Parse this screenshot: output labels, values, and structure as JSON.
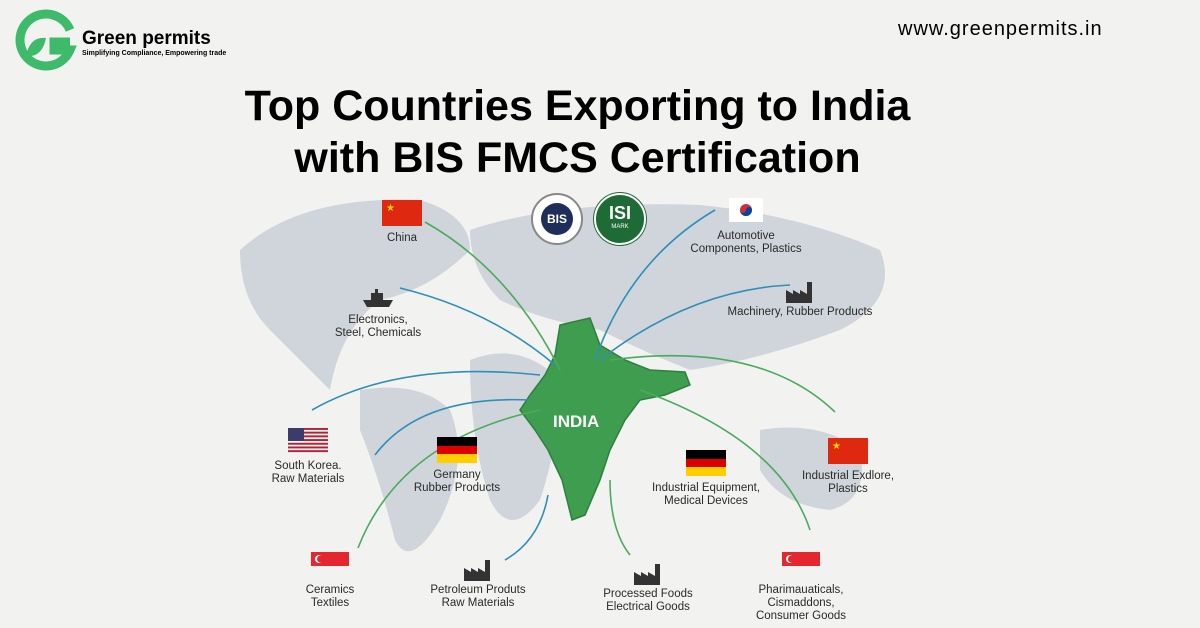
{
  "brand": {
    "name": "Green permits",
    "tagline": "Simplifying Compliance, Empowering trade",
    "website": "www.greenpermits.in",
    "color": "#3dbb6a"
  },
  "title": {
    "line1": "Top Countries Exporting to India",
    "line2": "with BIS FMCS Certification"
  },
  "badges": {
    "bis": "BIS",
    "isi": "ISI",
    "isi_sub": "MARK"
  },
  "map": {
    "center_label": "INDIA",
    "india_color": "#3e9d4f",
    "land_color": "#c9d0d6"
  },
  "destinations": [
    {
      "icon": "china-flag",
      "lines": [
        "China"
      ]
    },
    {
      "icon": "ship-icon",
      "lines": [
        "Electronics,",
        "Steel, Chemicals"
      ]
    },
    {
      "icon": "usa-flag",
      "lines": [
        "South Korea.",
        "Raw Materials"
      ]
    },
    {
      "icon": "germany-flag",
      "lines": [
        "Germany",
        "Rubber Products"
      ]
    },
    {
      "icon": "singapore-flag",
      "lines": [
        "Ceramics",
        "Textiles"
      ]
    },
    {
      "icon": "factory-icon",
      "lines": [
        "Petroleum Produts",
        "Raw Materials"
      ]
    },
    {
      "icon": "factory-icon",
      "lines": [
        "Processed Foods",
        "Electrical Goods"
      ]
    },
    {
      "icon": "south-korea-flag",
      "lines": [
        "Automotive",
        "Components, Plastics"
      ]
    },
    {
      "icon": "factory-icon",
      "lines": [
        "Machinery, Rubber Products"
      ]
    },
    {
      "icon": "germany-flag",
      "lines": [
        "Industrial Equipment,",
        "Medical Devices"
      ]
    },
    {
      "icon": "china-flag",
      "lines": [
        "Industrial Exdlore,",
        "Plastics"
      ]
    },
    {
      "icon": "singapore-flag",
      "lines": [
        "Pharimauaticals,",
        "Cismaddons,",
        "Consumer Goods"
      ]
    }
  ]
}
